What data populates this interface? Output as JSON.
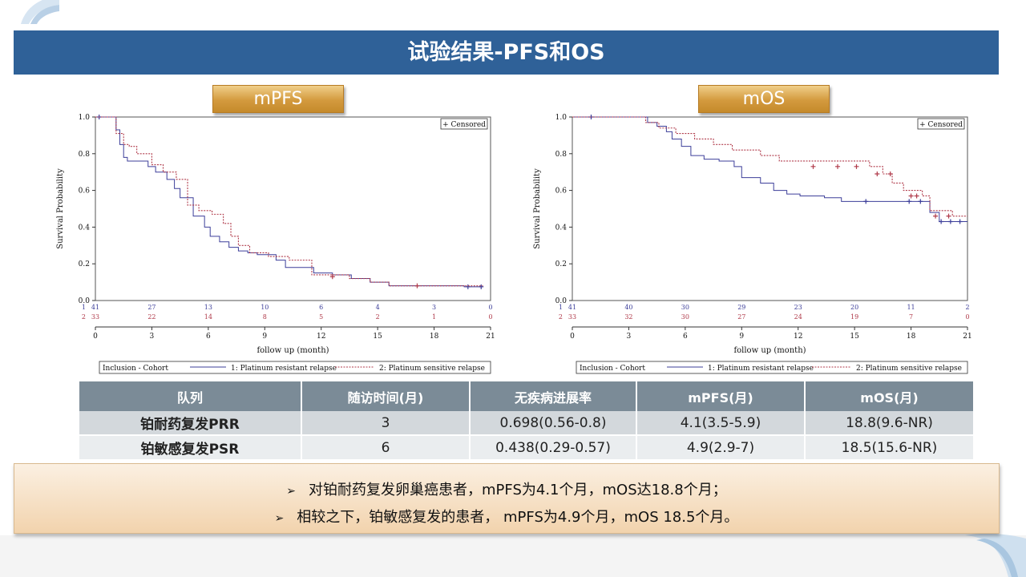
{
  "title": "试验结果-PFS和OS",
  "colors": {
    "title_bar": "#2f6198",
    "group1": "#3d3f9a",
    "group2": "#b03a4a",
    "tag": "#d39a3e"
  },
  "tags": {
    "pfs": "mPFS",
    "os": "mOS"
  },
  "chart_data": [
    {
      "type": "line",
      "subtype": "kaplan-meier",
      "tag": "mPFS",
      "ylabel": "Survival Probability",
      "xlabel": "follow up (month)",
      "xlim": [
        0,
        21
      ],
      "ylim": [
        0,
        1
      ],
      "xticks": [
        0,
        3,
        6,
        9,
        12,
        15,
        18,
        21
      ],
      "xtick_labels": [
        "0",
        "3",
        "6",
        "9",
        "12",
        "15",
        "18",
        "21"
      ],
      "yticks": [
        0.0,
        0.2,
        0.4,
        0.6,
        0.8,
        1.0
      ],
      "ytick_labels": [
        "0.0",
        "0.2",
        "0.4",
        "0.6",
        "0.8",
        "1.0"
      ],
      "censored_legend": "+ Censored",
      "legend_title": "Inclusion - Cohort",
      "legend_position": "bottom",
      "series": [
        {
          "name": "1: Platinum resistant relapse",
          "style": "solid",
          "x": [
            0,
            1.1,
            1.3,
            1.5,
            1.7,
            2.2,
            2.8,
            3.2,
            3.8,
            4.2,
            4.5,
            5.2,
            5.8,
            6.1,
            6.6,
            7.1,
            7.6,
            8.1,
            8.6,
            9.6,
            10.1,
            11.6,
            12.6,
            13.6,
            14.6,
            15.6,
            19.6,
            20.6
          ],
          "y": [
            1.0,
            0.93,
            0.85,
            0.78,
            0.76,
            0.76,
            0.73,
            0.7,
            0.66,
            0.61,
            0.56,
            0.46,
            0.4,
            0.35,
            0.32,
            0.29,
            0.27,
            0.26,
            0.25,
            0.22,
            0.18,
            0.15,
            0.14,
            0.12,
            0.1,
            0.08,
            0.075,
            0.075
          ],
          "censored": [
            {
              "x": 0.2,
              "y": 1.0
            },
            {
              "x": 19.8,
              "y": 0.075
            },
            {
              "x": 20.5,
              "y": 0.075
            }
          ],
          "risk_label": "1",
          "at_risk": [
            41,
            27,
            13,
            10,
            6,
            4,
            3,
            0
          ]
        },
        {
          "name": "2: Platinum sensitive relapse",
          "style": "dotted",
          "x": [
            0,
            1.1,
            1.5,
            1.8,
            2.2,
            3.0,
            3.6,
            4.3,
            4.9,
            5.5,
            6.2,
            6.8,
            7.2,
            7.6,
            8.2,
            9.2,
            10.3,
            11.5,
            13.5,
            14.6,
            15.6,
            20.6
          ],
          "y": [
            1.0,
            0.91,
            0.85,
            0.84,
            0.8,
            0.74,
            0.7,
            0.66,
            0.52,
            0.49,
            0.47,
            0.42,
            0.35,
            0.3,
            0.26,
            0.24,
            0.22,
            0.14,
            0.12,
            0.1,
            0.08,
            0.08
          ],
          "censored": [
            {
              "x": 12.6,
              "y": 0.13
            },
            {
              "x": 17.1,
              "y": 0.08
            }
          ],
          "risk_label": "2",
          "at_risk": [
            33,
            22,
            14,
            8,
            5,
            2,
            1,
            0
          ]
        }
      ]
    },
    {
      "type": "line",
      "subtype": "kaplan-meier",
      "tag": "mOS",
      "ylabel": "Survival Probability",
      "xlabel": "follow up (month)",
      "xlim": [
        0,
        21
      ],
      "ylim": [
        0,
        1
      ],
      "xticks": [
        0,
        3,
        6,
        9,
        12,
        15,
        18,
        21
      ],
      "xtick_labels": [
        "0",
        "3",
        "6",
        "9",
        "12",
        "15",
        "18",
        "21"
      ],
      "yticks": [
        0.0,
        0.2,
        0.4,
        0.6,
        0.8,
        1.0
      ],
      "ytick_labels": [
        "0.0",
        "0.2",
        "0.4",
        "0.6",
        "0.8",
        "1.0"
      ],
      "censored_legend": "+ Censored",
      "legend_title": "Inclusion - Cohort",
      "legend_position": "bottom",
      "series": [
        {
          "name": "1: Platinum resistant relapse",
          "style": "solid",
          "x": [
            0,
            4.0,
            4.5,
            5.0,
            5.3,
            5.8,
            6.3,
            7.0,
            7.8,
            8.6,
            9.0,
            10.0,
            10.7,
            11.4,
            12.1,
            13.4,
            14.3,
            19.0,
            19.5,
            21.0
          ],
          "y": [
            1.0,
            0.97,
            0.95,
            0.92,
            0.88,
            0.84,
            0.79,
            0.77,
            0.76,
            0.73,
            0.67,
            0.64,
            0.6,
            0.58,
            0.57,
            0.56,
            0.54,
            0.48,
            0.43,
            0.43
          ],
          "censored": [
            {
              "x": 1.0,
              "y": 1.0
            },
            {
              "x": 15.6,
              "y": 0.54
            },
            {
              "x": 17.9,
              "y": 0.54
            },
            {
              "x": 18.5,
              "y": 0.54
            },
            {
              "x": 19.6,
              "y": 0.43
            },
            {
              "x": 20.1,
              "y": 0.43
            },
            {
              "x": 20.6,
              "y": 0.43
            }
          ],
          "risk_label": "1",
          "at_risk": [
            41,
            40,
            30,
            29,
            23,
            20,
            11,
            2
          ]
        },
        {
          "name": "2: Platinum sensitive relapse",
          "style": "dotted",
          "x": [
            0,
            3.9,
            4.6,
            5.5,
            6.5,
            7.5,
            8.5,
            10.0,
            11.0,
            15.8,
            16.5,
            17.0,
            17.6,
            18.6,
            19.0,
            20.2,
            21.0
          ],
          "y": [
            1.0,
            0.97,
            0.94,
            0.91,
            0.88,
            0.85,
            0.82,
            0.79,
            0.76,
            0.73,
            0.69,
            0.64,
            0.6,
            0.57,
            0.49,
            0.46,
            0.46
          ],
          "censored": [
            {
              "x": 12.8,
              "y": 0.73
            },
            {
              "x": 14.1,
              "y": 0.73
            },
            {
              "x": 15.1,
              "y": 0.73
            },
            {
              "x": 16.2,
              "y": 0.69
            },
            {
              "x": 16.9,
              "y": 0.69
            },
            {
              "x": 18.0,
              "y": 0.57
            },
            {
              "x": 18.3,
              "y": 0.57
            },
            {
              "x": 19.3,
              "y": 0.46
            },
            {
              "x": 20.0,
              "y": 0.46
            }
          ],
          "risk_label": "2",
          "at_risk": [
            33,
            32,
            30,
            27,
            24,
            19,
            7,
            0
          ]
        }
      ]
    }
  ],
  "table": {
    "headers": [
      "队列",
      "随访时间(月)",
      "无疾病进展率",
      "mPFS(月)",
      "mOS(月)"
    ],
    "rows": [
      [
        "铂耐药复发PRR",
        "3",
        "0.698(0.56-0.8)",
        "4.1(3.5-5.9)",
        "18.8(9.6-NR)"
      ],
      [
        "铂敏感复发PSR",
        "6",
        "0.438(0.29-0.57)",
        "4.9(2.9-7)",
        "18.5(15.6-NR)"
      ]
    ]
  },
  "notes": {
    "bullet": "➢",
    "line1": "对铂耐药复发卵巢癌患者，mPFS为4.1个月，mOS达18.8个月；",
    "line2": "相较之下，铂敏感复发的患者， mPFS为4.9个月，mOS 18.5个月。"
  }
}
